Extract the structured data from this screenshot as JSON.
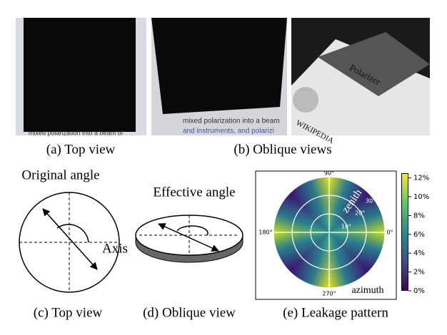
{
  "photos": {
    "a_text": "mixed polarization into a beam of",
    "b_text1": "mixed polarization into a beam",
    "b_text2": "and instruments, and polarizi",
    "c_title": "Polarizer",
    "c_logo": "WIKIPEDIA"
  },
  "captions": {
    "a": "(a) Top view",
    "b": "(b) Oblique views",
    "c": "(c) Top view",
    "d": "(d) Oblique view",
    "e": "(e) Leakage pattern"
  },
  "diagram_c": {
    "label": "Original angle",
    "axis": "Axis"
  },
  "diagram_d": {
    "label": "Effective angle"
  },
  "leakage": {
    "angle_labels": [
      "90°",
      "180°",
      "0°",
      "270°"
    ],
    "ring_labels": [
      "10°",
      "20°",
      "30°"
    ],
    "radial_label": "zenith",
    "angular_label": "azimuth",
    "colorbar": {
      "lim": [
        0,
        12.5
      ],
      "ticks": [
        {
          "value": 0,
          "label": "0%"
        },
        {
          "value": 2,
          "label": "2%"
        },
        {
          "value": 4,
          "label": "4%"
        },
        {
          "value": 6,
          "label": "6%"
        },
        {
          "value": 8,
          "label": "8%"
        },
        {
          "value": 10,
          "label": "10%"
        },
        {
          "value": 12,
          "label": "12%"
        }
      ]
    }
  }
}
